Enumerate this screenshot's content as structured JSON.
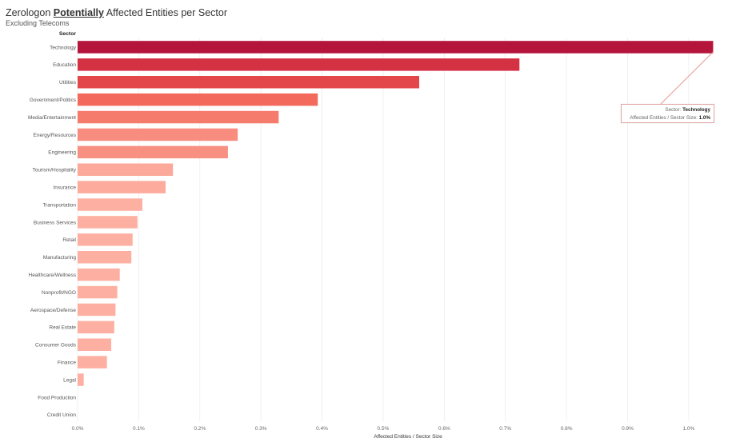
{
  "title": {
    "prefix": "Zerologon ",
    "emphasis": "Potentially",
    "suffix": " Affected Entities per Sector"
  },
  "subtitle": "Excluding Telecoms",
  "colors": {
    "top": "#b5153b",
    "high": "#de3a45",
    "mid": "#f26456",
    "low": "#fdb0a2"
  },
  "tooltip": {
    "sector_label": "Sector: ",
    "sector_value": "Technology",
    "metric_label": "Affected Entities / Sector Size: ",
    "metric_value": "1.0%"
  },
  "chart_data": {
    "type": "bar",
    "orientation": "horizontal",
    "category_header": "Sector",
    "xlabel": "Affected Entities / Sector Size",
    "xlim": [
      0,
      1.08
    ],
    "xticks": [
      0,
      0.1,
      0.2,
      0.3,
      0.4,
      0.5,
      0.6,
      0.7,
      0.8,
      0.9,
      1.0
    ],
    "xtick_labels": [
      "0.0%",
      "0.1%",
      "0.2%",
      "0.3%",
      "0.4%",
      "0.5%",
      "0.6%",
      "0.7%",
      "0.8%",
      "0.9%",
      "1.0%"
    ],
    "grid": true,
    "categories": [
      "Technology",
      "Education",
      "Utilities",
      "Government/Politics",
      "Media/Entertainment",
      "Energy/Resources",
      "Engineering",
      "Tourism/Hospitality",
      "Insurance",
      "Transportation",
      "Business Services",
      "Retail",
      "Manufacturing",
      "Healthcare/Wellness",
      "Nonprofit/NGO",
      "Aerospace/Defense",
      "Real Estate",
      "Consumer Goods",
      "Finance",
      "Legal",
      "Food Production",
      "Credit Union"
    ],
    "values": [
      1.04,
      0.723,
      0.559,
      0.393,
      0.329,
      0.262,
      0.246,
      0.156,
      0.144,
      0.106,
      0.098,
      0.09,
      0.088,
      0.069,
      0.065,
      0.062,
      0.06,
      0.055,
      0.048,
      0.01,
      0,
      0
    ]
  }
}
